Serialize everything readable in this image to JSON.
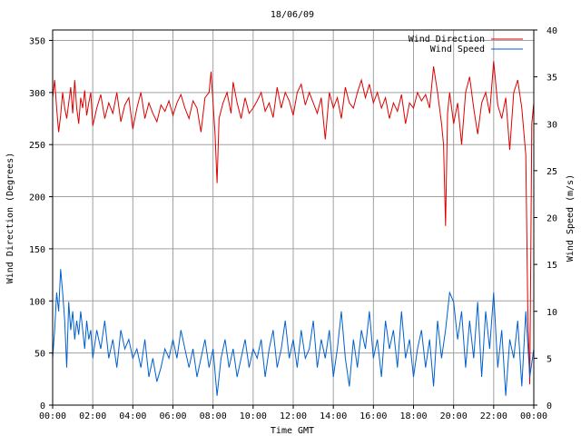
{
  "chart_data": {
    "type": "line",
    "title": "18/06/09",
    "xlabel": "Time GMT",
    "ylabel_left": "Wind Direction (Degrees)",
    "ylabel_right": "Wind Speed (m/s)",
    "x_ticks": [
      "00:00",
      "02:00",
      "04:00",
      "06:00",
      "08:00",
      "10:00",
      "12:00",
      "14:00",
      "16:00",
      "18:00",
      "20:00",
      "22:00",
      "00:00"
    ],
    "y_left_ticks": [
      "0",
      "50",
      "100",
      "150",
      "200",
      "250",
      "300",
      "350"
    ],
    "y_right_ticks": [
      "0",
      "5",
      "10",
      "15",
      "20",
      "25",
      "30",
      "35",
      "40"
    ],
    "xlim_hours": [
      0,
      24
    ],
    "ylim_left": [
      0,
      360
    ],
    "ylim_right": [
      0,
      40
    ],
    "grid": true,
    "legend_position": "top-right",
    "series": [
      {
        "name": "Wind Direction",
        "axis": "left",
        "color": "#dd0000",
        "points": [
          [
            0.0,
            295
          ],
          [
            0.1,
            312
          ],
          [
            0.2,
            285
          ],
          [
            0.3,
            262
          ],
          [
            0.4,
            278
          ],
          [
            0.5,
            300
          ],
          [
            0.6,
            285
          ],
          [
            0.7,
            275
          ],
          [
            0.8,
            290
          ],
          [
            0.9,
            305
          ],
          [
            1.0,
            280
          ],
          [
            1.1,
            312
          ],
          [
            1.2,
            285
          ],
          [
            1.3,
            270
          ],
          [
            1.4,
            295
          ],
          [
            1.5,
            285
          ],
          [
            1.6,
            302
          ],
          [
            1.7,
            278
          ],
          [
            1.8,
            290
          ],
          [
            1.9,
            300
          ],
          [
            2.0,
            268
          ],
          [
            2.2,
            285
          ],
          [
            2.4,
            298
          ],
          [
            2.6,
            275
          ],
          [
            2.8,
            290
          ],
          [
            3.0,
            280
          ],
          [
            3.2,
            300
          ],
          [
            3.4,
            272
          ],
          [
            3.6,
            288
          ],
          [
            3.8,
            295
          ],
          [
            4.0,
            265
          ],
          [
            4.2,
            285
          ],
          [
            4.4,
            300
          ],
          [
            4.6,
            275
          ],
          [
            4.8,
            290
          ],
          [
            5.0,
            280
          ],
          [
            5.2,
            272
          ],
          [
            5.4,
            288
          ],
          [
            5.6,
            282
          ],
          [
            5.8,
            292
          ],
          [
            6.0,
            278
          ],
          [
            6.2,
            290
          ],
          [
            6.4,
            298
          ],
          [
            6.6,
            285
          ],
          [
            6.8,
            275
          ],
          [
            7.0,
            292
          ],
          [
            7.2,
            285
          ],
          [
            7.4,
            262
          ],
          [
            7.6,
            295
          ],
          [
            7.8,
            300
          ],
          [
            7.9,
            320
          ],
          [
            8.0,
            290
          ],
          [
            8.1,
            260
          ],
          [
            8.2,
            213
          ],
          [
            8.3,
            275
          ],
          [
            8.5,
            290
          ],
          [
            8.7,
            300
          ],
          [
            8.9,
            280
          ],
          [
            9.0,
            310
          ],
          [
            9.2,
            290
          ],
          [
            9.4,
            275
          ],
          [
            9.6,
            295
          ],
          [
            9.8,
            280
          ],
          [
            10.0,
            285
          ],
          [
            10.2,
            292
          ],
          [
            10.4,
            300
          ],
          [
            10.6,
            282
          ],
          [
            10.8,
            290
          ],
          [
            11.0,
            276
          ],
          [
            11.2,
            305
          ],
          [
            11.4,
            285
          ],
          [
            11.6,
            300
          ],
          [
            11.8,
            292
          ],
          [
            12.0,
            278
          ],
          [
            12.2,
            300
          ],
          [
            12.4,
            308
          ],
          [
            12.6,
            288
          ],
          [
            12.8,
            300
          ],
          [
            13.0,
            290
          ],
          [
            13.2,
            280
          ],
          [
            13.4,
            295
          ],
          [
            13.6,
            255
          ],
          [
            13.8,
            300
          ],
          [
            14.0,
            285
          ],
          [
            14.2,
            295
          ],
          [
            14.4,
            275
          ],
          [
            14.6,
            305
          ],
          [
            14.8,
            290
          ],
          [
            15.0,
            285
          ],
          [
            15.2,
            300
          ],
          [
            15.4,
            312
          ],
          [
            15.6,
            295
          ],
          [
            15.8,
            308
          ],
          [
            16.0,
            290
          ],
          [
            16.2,
            300
          ],
          [
            16.4,
            285
          ],
          [
            16.6,
            295
          ],
          [
            16.8,
            275
          ],
          [
            17.0,
            290
          ],
          [
            17.2,
            282
          ],
          [
            17.4,
            298
          ],
          [
            17.6,
            270
          ],
          [
            17.8,
            290
          ],
          [
            18.0,
            285
          ],
          [
            18.2,
            300
          ],
          [
            18.4,
            292
          ],
          [
            18.6,
            298
          ],
          [
            18.8,
            285
          ],
          [
            19.0,
            325
          ],
          [
            19.2,
            300
          ],
          [
            19.4,
            270
          ],
          [
            19.5,
            250
          ],
          [
            19.6,
            172
          ],
          [
            19.7,
            280
          ],
          [
            19.8,
            300
          ],
          [
            20.0,
            270
          ],
          [
            20.2,
            290
          ],
          [
            20.4,
            250
          ],
          [
            20.6,
            300
          ],
          [
            20.8,
            315
          ],
          [
            21.0,
            285
          ],
          [
            21.2,
            260
          ],
          [
            21.4,
            290
          ],
          [
            21.6,
            300
          ],
          [
            21.8,
            280
          ],
          [
            22.0,
            330
          ],
          [
            22.2,
            288
          ],
          [
            22.4,
            275
          ],
          [
            22.6,
            295
          ],
          [
            22.8,
            245
          ],
          [
            23.0,
            300
          ],
          [
            23.2,
            312
          ],
          [
            23.4,
            285
          ],
          [
            23.6,
            240
          ],
          [
            23.7,
            90
          ],
          [
            23.8,
            20
          ],
          [
            23.9,
            270
          ],
          [
            24.0,
            290
          ]
        ]
      },
      {
        "name": "Wind Speed",
        "axis": "right",
        "color": "#0060d0",
        "points": [
          [
            0.0,
            5
          ],
          [
            0.1,
            8
          ],
          [
            0.2,
            12
          ],
          [
            0.3,
            10
          ],
          [
            0.4,
            14.5
          ],
          [
            0.5,
            12
          ],
          [
            0.6,
            9
          ],
          [
            0.7,
            4
          ],
          [
            0.8,
            11
          ],
          [
            0.9,
            8
          ],
          [
            1.0,
            10
          ],
          [
            1.1,
            7
          ],
          [
            1.2,
            9
          ],
          [
            1.3,
            7.5
          ],
          [
            1.4,
            10
          ],
          [
            1.5,
            8
          ],
          [
            1.6,
            6
          ],
          [
            1.7,
            9
          ],
          [
            1.8,
            7
          ],
          [
            1.9,
            8
          ],
          [
            2.0,
            5
          ],
          [
            2.2,
            8
          ],
          [
            2.4,
            6
          ],
          [
            2.6,
            9
          ],
          [
            2.8,
            5
          ],
          [
            3.0,
            7
          ],
          [
            3.2,
            4
          ],
          [
            3.4,
            8
          ],
          [
            3.6,
            6
          ],
          [
            3.8,
            7
          ],
          [
            4.0,
            5
          ],
          [
            4.2,
            6
          ],
          [
            4.4,
            4
          ],
          [
            4.6,
            7
          ],
          [
            4.8,
            3
          ],
          [
            5.0,
            5
          ],
          [
            5.2,
            2.5
          ],
          [
            5.4,
            4
          ],
          [
            5.6,
            6
          ],
          [
            5.8,
            5
          ],
          [
            6.0,
            7
          ],
          [
            6.2,
            5
          ],
          [
            6.4,
            8
          ],
          [
            6.6,
            6
          ],
          [
            6.8,
            4
          ],
          [
            7.0,
            6
          ],
          [
            7.2,
            3
          ],
          [
            7.4,
            5
          ],
          [
            7.6,
            7
          ],
          [
            7.8,
            4
          ],
          [
            8.0,
            6
          ],
          [
            8.2,
            1
          ],
          [
            8.4,
            5
          ],
          [
            8.6,
            7
          ],
          [
            8.8,
            4
          ],
          [
            9.0,
            6
          ],
          [
            9.2,
            3
          ],
          [
            9.4,
            5
          ],
          [
            9.6,
            7
          ],
          [
            9.8,
            4
          ],
          [
            10.0,
            6
          ],
          [
            10.2,
            5
          ],
          [
            10.4,
            7
          ],
          [
            10.6,
            3
          ],
          [
            10.8,
            6
          ],
          [
            11.0,
            8
          ],
          [
            11.2,
            4
          ],
          [
            11.4,
            6
          ],
          [
            11.6,
            9
          ],
          [
            11.8,
            5
          ],
          [
            12.0,
            7
          ],
          [
            12.2,
            4
          ],
          [
            12.4,
            8
          ],
          [
            12.6,
            5
          ],
          [
            12.8,
            6
          ],
          [
            13.0,
            9
          ],
          [
            13.2,
            4
          ],
          [
            13.4,
            7
          ],
          [
            13.6,
            5
          ],
          [
            13.8,
            8
          ],
          [
            14.0,
            3
          ],
          [
            14.2,
            6
          ],
          [
            14.4,
            10
          ],
          [
            14.6,
            5
          ],
          [
            14.8,
            2
          ],
          [
            15.0,
            7
          ],
          [
            15.2,
            4
          ],
          [
            15.4,
            8
          ],
          [
            15.6,
            6
          ],
          [
            15.8,
            10
          ],
          [
            16.0,
            5
          ],
          [
            16.2,
            7
          ],
          [
            16.4,
            3
          ],
          [
            16.6,
            9
          ],
          [
            16.8,
            6
          ],
          [
            17.0,
            8
          ],
          [
            17.2,
            4
          ],
          [
            17.4,
            10
          ],
          [
            17.6,
            5
          ],
          [
            17.8,
            7
          ],
          [
            18.0,
            3
          ],
          [
            18.2,
            6
          ],
          [
            18.4,
            8
          ],
          [
            18.6,
            4
          ],
          [
            18.8,
            7
          ],
          [
            19.0,
            2
          ],
          [
            19.2,
            9
          ],
          [
            19.4,
            5
          ],
          [
            19.6,
            8
          ],
          [
            19.8,
            12
          ],
          [
            20.0,
            11
          ],
          [
            20.2,
            7
          ],
          [
            20.4,
            10
          ],
          [
            20.6,
            4
          ],
          [
            20.8,
            9
          ],
          [
            21.0,
            5
          ],
          [
            21.2,
            11
          ],
          [
            21.4,
            3
          ],
          [
            21.6,
            10
          ],
          [
            21.8,
            6
          ],
          [
            22.0,
            12
          ],
          [
            22.2,
            4
          ],
          [
            22.4,
            8
          ],
          [
            22.6,
            1
          ],
          [
            22.8,
            7
          ],
          [
            23.0,
            5
          ],
          [
            23.2,
            9
          ],
          [
            23.4,
            2
          ],
          [
            23.6,
            10
          ],
          [
            23.8,
            3
          ],
          [
            24.0,
            6
          ]
        ]
      }
    ]
  }
}
